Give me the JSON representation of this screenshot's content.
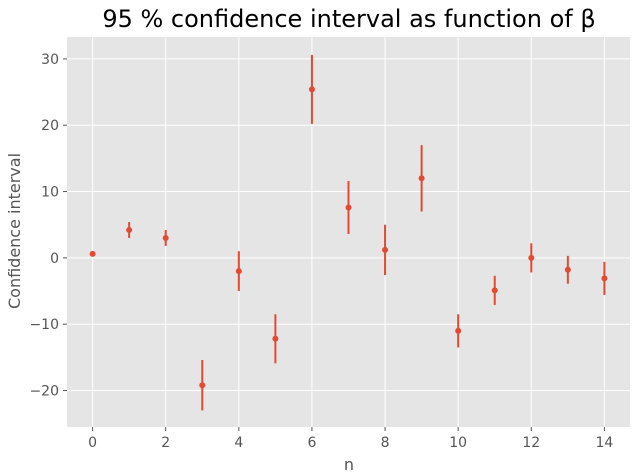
{
  "chart_data": {
    "type": "scatter",
    "title": "95 % confidence interval as function of β",
    "xlabel": "n",
    "ylabel": "Confidence interval",
    "xlim": [
      -0.7,
      14.7
    ],
    "ylim": [
      -25.5,
      33.3
    ],
    "x_ticks": [
      0,
      2,
      4,
      6,
      8,
      10,
      12,
      14
    ],
    "y_ticks": [
      -20,
      -10,
      0,
      10,
      20,
      30
    ],
    "grid": true,
    "x": [
      0,
      1,
      2,
      3,
      4,
      5,
      6,
      7,
      8,
      9,
      10,
      11,
      12,
      13,
      14
    ],
    "y": [
      0.6,
      4.2,
      3.0,
      -19.2,
      -2.0,
      -12.2,
      25.4,
      7.6,
      1.2,
      12.0,
      -11.0,
      -4.9,
      0.0,
      -1.8,
      -3.1
    ],
    "error": [
      0.3,
      1.2,
      1.2,
      3.8,
      3.0,
      3.7,
      5.2,
      4.0,
      3.8,
      5.0,
      2.5,
      2.2,
      2.2,
      2.1,
      2.5
    ],
    "color": "#e24a33",
    "background": "#e5e5e5",
    "grid_color": "#ffffff"
  }
}
